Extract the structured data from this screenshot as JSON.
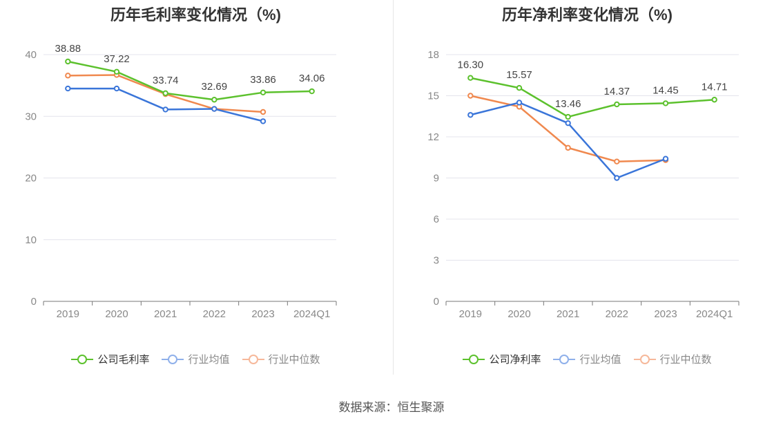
{
  "source": "数据来源：恒生聚源",
  "colors": {
    "company": "#5cc12d",
    "industry_avg": "#3a75d9",
    "industry_median": "#f0894f"
  },
  "chart_data": [
    {
      "type": "line",
      "title": "历年毛利率变化情况（%)",
      "categories": [
        "2019",
        "2020",
        "2021",
        "2022",
        "2023",
        "2024Q1"
      ],
      "ylim": [
        0,
        40
      ],
      "yticks": [
        0,
        10,
        20,
        30,
        40
      ],
      "grid": true,
      "legend_position": "bottom",
      "series": [
        {
          "name": "公司毛利率",
          "key": "company",
          "values": [
            38.88,
            37.22,
            33.74,
            32.69,
            33.86,
            34.06
          ],
          "labels": [
            "38.88",
            "37.22",
            "33.74",
            "32.69",
            "33.86",
            "34.06"
          ]
        },
        {
          "name": "行业均值",
          "key": "industry_avg",
          "values": [
            34.5,
            34.5,
            31.1,
            31.2,
            29.2,
            null
          ]
        },
        {
          "name": "行业中位数",
          "key": "industry_median",
          "values": [
            36.6,
            36.7,
            33.6,
            31.2,
            30.7,
            null
          ]
        }
      ]
    },
    {
      "type": "line",
      "title": "历年净利率变化情况（%)",
      "categories": [
        "2019",
        "2020",
        "2021",
        "2022",
        "2023",
        "2024Q1"
      ],
      "ylim": [
        0,
        18
      ],
      "yticks": [
        0,
        3,
        6,
        9,
        12,
        15,
        18
      ],
      "grid": true,
      "legend_position": "bottom",
      "series": [
        {
          "name": "公司净利率",
          "key": "company",
          "values": [
            16.3,
            15.57,
            13.46,
            14.37,
            14.45,
            14.71
          ],
          "labels": [
            "16.30",
            "15.57",
            "13.46",
            "14.37",
            "14.45",
            "14.71"
          ]
        },
        {
          "name": "行业均值",
          "key": "industry_avg",
          "values": [
            13.6,
            14.5,
            13.0,
            9.0,
            10.4,
            null
          ]
        },
        {
          "name": "行业中位数",
          "key": "industry_median",
          "values": [
            15.0,
            14.2,
            11.2,
            10.2,
            10.3,
            null
          ]
        }
      ]
    }
  ]
}
